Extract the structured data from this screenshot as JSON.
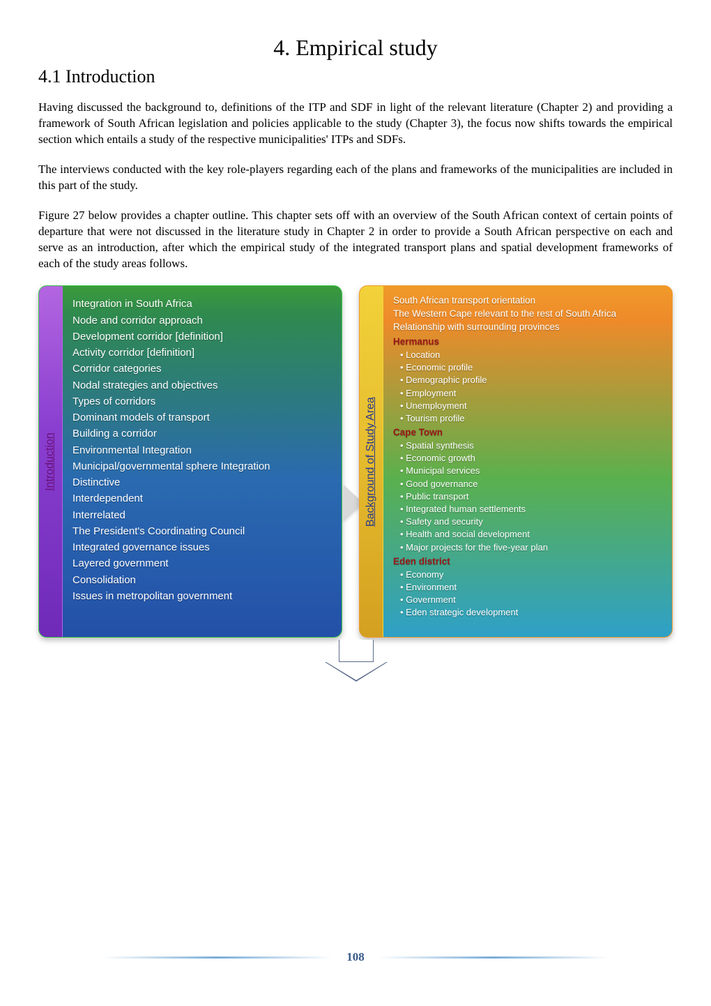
{
  "chapter_title": "4. Empirical study",
  "section_title": "4.1    Introduction",
  "paragraphs": [
    "Having discussed the background to, definitions of the ITP and SDF in light of the relevant literature (Chapter 2) and providing a framework of South African legislation and policies applicable to the study (Chapter 3), the focus now shifts towards the empirical section which entails a study of the respective municipalities' ITPs and SDFs.",
    "The interviews conducted with the key role-players regarding each of the plans and frameworks of the municipalities are included in this part of the study.",
    "Figure 27 below provides a chapter outline. This chapter sets off with an overview of the South African context of certain points of departure that were not discussed in the literature study in Chapter 2 in order to provide a South African perspective on each and serve as an introduction, after which the empirical study of the integrated transport plans and spatial development frameworks of each of the study areas follows."
  ],
  "left_card": {
    "tab_label": "Introduction",
    "items": [
      "Integration in South Africa",
      "Node and corridor approach",
      "Development corridor [definition]",
      "Activity corridor [definition]",
      "Corridor categories",
      "Nodal strategies and objectives",
      "Types of corridors",
      "Dominant models of transport",
      "Building a corridor",
      "Environmental Integration",
      "Municipal/governmental sphere Integration",
      "Distinctive",
      "Interdependent",
      "Interrelated",
      "The President's Coordinating Council",
      "Integrated governance issues",
      "Layered government",
      "Consolidation",
      "Issues in metropolitan government"
    ]
  },
  "right_card": {
    "tab_label": "Background of Study Area",
    "intro_lines": [
      "South African transport orientation",
      "The Western Cape relevant to the rest of South Africa",
      "Relationship with surrounding provinces"
    ],
    "sections": [
      {
        "heading": "Hermanus",
        "bullets": [
          "Location",
          "Economic profile",
          "Demographic profile",
          "Employment",
          "Unemployment",
          "Tourism profile"
        ]
      },
      {
        "heading": "Cape Town",
        "bullets": [
          "Spatial synthesis",
          "Economic growth",
          "Municipal services",
          "Good governance",
          "Public transport",
          "Integrated human settlements",
          "Safety and security",
          "Health and social development",
          "Major projects for the five-year plan"
        ]
      },
      {
        "heading": "Eden district",
        "bullets": [
          "Economy",
          "Environment",
          "Government",
          "Eden strategic development"
        ]
      }
    ]
  },
  "page_number": "108",
  "colors": {
    "left_tab_gradient_top": "#b366e0",
    "left_tab_gradient_bottom": "#6f2ab8",
    "right_tab_gradient_top": "#f2d23a",
    "right_tab_gradient_bottom": "#d4a020",
    "left_card_gradient_top": "#3a9b3a",
    "left_card_gradient_bottom": "#2350a8",
    "right_card_gradient_top": "#f09a2a",
    "right_card_gradient_bottom": "#2ea0c8",
    "sub_heading": "#9a1a1a",
    "footer_line": "#7aadd8",
    "footer_text": "#3a5a8a"
  }
}
